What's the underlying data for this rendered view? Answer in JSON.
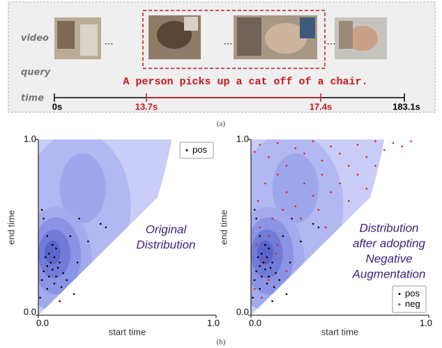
{
  "figure_a": {
    "row_labels": [
      "video",
      "query",
      "time"
    ],
    "query": "A person picks up a cat off of a chair.",
    "time_labels": [
      "0s",
      "13.7s",
      "17.4s",
      "183.1s"
    ],
    "caption": "(a)"
  },
  "caption_b": "(b)",
  "chart_data": [
    {
      "type": "scatter",
      "xlabel": "start time",
      "ylabel": "end time",
      "xlim": [
        0,
        1
      ],
      "ylim": [
        0,
        1
      ],
      "xticks": [
        {
          "value": 0,
          "label": "0.0"
        },
        {
          "value": 1,
          "label": "1.0"
        }
      ],
      "yticks": [
        {
          "value": 0,
          "label": "0.0"
        },
        {
          "value": 1,
          "label": "1.0"
        }
      ],
      "legend": "upper right",
      "annotation": [
        {
          "text": "Original",
          "bold": false
        },
        {
          "text": "Distribution",
          "bold": false
        }
      ],
      "series": [
        {
          "name": "pos",
          "color": "#000000",
          "x": [
            0.02,
            0.03,
            0.05,
            0.08,
            0.1,
            0.06,
            0.04,
            0.09,
            0.12,
            0.07,
            0.05,
            0.11,
            0.08,
            0.03,
            0.14,
            0.1,
            0.06,
            0.16,
            0.02,
            0.09,
            0.13,
            0.05,
            0.2,
            0.18,
            0.23,
            0.35,
            0.38,
            0.28,
            0.01,
            0.12,
            0.22
          ],
          "values": [
            0.6,
            0.55,
            0.45,
            0.4,
            0.38,
            0.35,
            0.33,
            0.33,
            0.3,
            0.3,
            0.28,
            0.27,
            0.26,
            0.25,
            0.24,
            0.22,
            0.22,
            0.2,
            0.2,
            0.18,
            0.16,
            0.15,
            0.12,
            0.45,
            0.55,
            0.52,
            0.5,
            0.42,
            0.1,
            0.08,
            0.3
          ]
        }
      ]
    },
    {
      "type": "scatter",
      "xlabel": "start time",
      "ylabel": "end time",
      "xlim": [
        0,
        1
      ],
      "ylim": [
        0,
        1
      ],
      "xticks": [
        {
          "value": 0,
          "label": "0.0"
        },
        {
          "value": 1,
          "label": "1.0"
        }
      ],
      "yticks": [
        {
          "value": 0,
          "label": "0.0"
        },
        {
          "value": 1,
          "label": "1.0"
        }
      ],
      "legend": "lower right",
      "annotation": [
        {
          "text": "Distribution",
          "bold": false
        },
        {
          "text": "after adopting",
          "bold": false
        },
        {
          "text": "Negative",
          "bold": true
        },
        {
          "text": "Augmentation",
          "bold": true
        }
      ],
      "series": [
        {
          "name": "pos",
          "color": "#000000",
          "x": [
            0.02,
            0.03,
            0.05,
            0.08,
            0.1,
            0.06,
            0.04,
            0.09,
            0.12,
            0.07,
            0.05,
            0.11,
            0.08,
            0.03,
            0.14,
            0.1,
            0.06,
            0.16,
            0.02,
            0.09,
            0.13,
            0.05,
            0.2,
            0.18,
            0.23,
            0.35,
            0.38,
            0.28,
            0.01,
            0.12,
            0.22
          ],
          "values": [
            0.6,
            0.55,
            0.45,
            0.4,
            0.38,
            0.35,
            0.33,
            0.33,
            0.3,
            0.3,
            0.28,
            0.27,
            0.26,
            0.25,
            0.24,
            0.22,
            0.22,
            0.2,
            0.2,
            0.18,
            0.16,
            0.15,
            0.12,
            0.45,
            0.55,
            0.52,
            0.5,
            0.42,
            0.1,
            0.08,
            0.3
          ]
        },
        {
          "name": "neg",
          "color": "#e8191c",
          "x": [
            0.02,
            0.05,
            0.1,
            0.15,
            0.2,
            0.25,
            0.3,
            0.35,
            0.4,
            0.45,
            0.5,
            0.55,
            0.6,
            0.65,
            0.7,
            0.75,
            0.8,
            0.85,
            0.9,
            0.6,
            0.5,
            0.45,
            0.4,
            0.35,
            0.3,
            0.25,
            0.2,
            0.15,
            0.08,
            0.04,
            0.12,
            0.18,
            0.28,
            0.38,
            0.42,
            0.05,
            0.1,
            0.15,
            0.03,
            0.08,
            0.14,
            0.02,
            0.06,
            0.1,
            0.2,
            0.55,
            0.65,
            0.7
          ],
          "values": [
            0.93,
            0.97,
            0.9,
            0.98,
            0.85,
            0.95,
            0.92,
            0.99,
            0.88,
            0.96,
            0.92,
            0.85,
            0.97,
            0.9,
            0.99,
            0.94,
            0.98,
            0.96,
            0.99,
            0.8,
            0.75,
            0.7,
            0.8,
            0.68,
            0.75,
            0.62,
            0.7,
            0.8,
            0.75,
            0.65,
            0.55,
            0.6,
            0.55,
            0.6,
            0.5,
            0.5,
            0.45,
            0.4,
            0.4,
            0.3,
            0.35,
            0.15,
            0.1,
            0.2,
            0.25,
            0.65,
            0.72,
            0.85
          ]
        }
      ]
    }
  ]
}
